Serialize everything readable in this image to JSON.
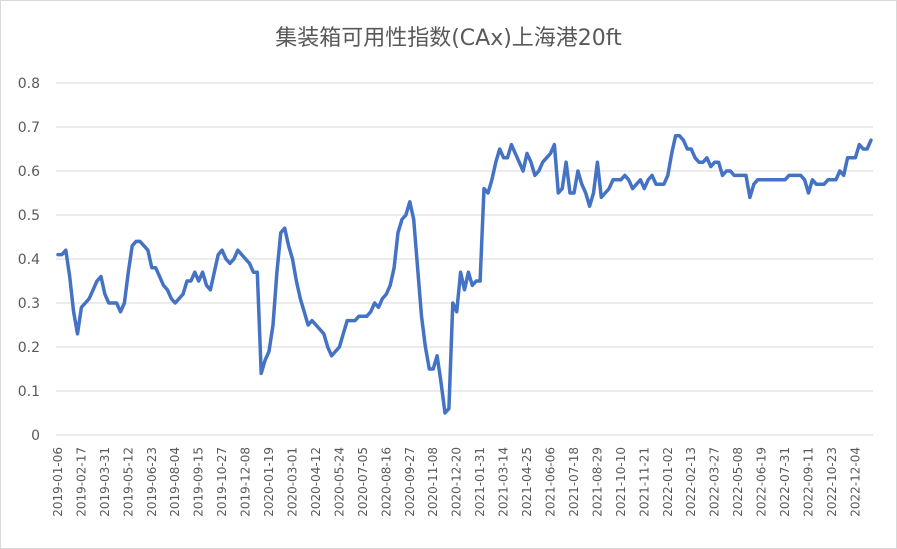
{
  "chart_data": {
    "type": "line",
    "title": "集装箱可用性指数(CAx)上海港20ft",
    "xlabel": "",
    "ylabel": "",
    "ylim": [
      0,
      0.8
    ],
    "yticks": [
      "0",
      "0.1",
      "0.2",
      "0.3",
      "0.4",
      "0.5",
      "0.6",
      "0.7",
      "0.8"
    ],
    "grid": true,
    "legend": "none",
    "line_color": "#4472C4",
    "x_tick_labels": [
      "2019-01-06",
      "2019-02-17",
      "2019-03-31",
      "2019-05-12",
      "2019-06-23",
      "2019-08-04",
      "2019-09-15",
      "2019-10-27",
      "2019-12-08",
      "2020-01-19",
      "2020-03-01",
      "2020-04-12",
      "2020-05-24",
      "2020-07-05",
      "2020-08-16",
      "2020-09-27",
      "2020-11-08",
      "2020-12-20",
      "2021-01-31",
      "2021-03-14",
      "2021-04-25",
      "2021-06-06",
      "2021-07-18",
      "2021-08-29",
      "2021-10-10",
      "2021-11-21",
      "2022-01-02",
      "2022-02-13",
      "2022-03-27",
      "2022-05-08",
      "2022-06-19",
      "2022-07-31",
      "2022-09-11",
      "2022-10-23",
      "2022-12-04"
    ],
    "series": [
      {
        "values": [
          0.41,
          0.41,
          0.42,
          0.36,
          0.28,
          0.23,
          0.29,
          0.3,
          0.31,
          0.33,
          0.35,
          0.36,
          0.32,
          0.3,
          0.3,
          0.3,
          0.28,
          0.3,
          0.37,
          0.43,
          0.44,
          0.44,
          0.43,
          0.42,
          0.38,
          0.38,
          0.36,
          0.34,
          0.33,
          0.31,
          0.3,
          0.31,
          0.32,
          0.35,
          0.35,
          0.37,
          0.35,
          0.37,
          0.34,
          0.33,
          0.37,
          0.41,
          0.42,
          0.4,
          0.39,
          0.4,
          0.42,
          0.41,
          0.4,
          0.39,
          0.37,
          0.37,
          0.14,
          0.17,
          0.19,
          0.25,
          0.37,
          0.46,
          0.47,
          0.43,
          0.4,
          0.35,
          0.31,
          0.28,
          0.25,
          0.26,
          0.25,
          0.24,
          0.23,
          0.2,
          0.18,
          0.19,
          0.2,
          0.23,
          0.26,
          0.26,
          0.26,
          0.27,
          0.27,
          0.27,
          0.28,
          0.3,
          0.29,
          0.31,
          0.32,
          0.34,
          0.38,
          0.46,
          0.49,
          0.5,
          0.53,
          0.49,
          0.38,
          0.27,
          0.2,
          0.15,
          0.15,
          0.18,
          0.12,
          0.05,
          0.06,
          0.3,
          0.28,
          0.37,
          0.33,
          0.37,
          0.34,
          0.35,
          0.35,
          0.56,
          0.55,
          0.58,
          0.62,
          0.65,
          0.63,
          0.63,
          0.66,
          0.64,
          0.62,
          0.6,
          0.64,
          0.62,
          0.59,
          0.6,
          0.62,
          0.63,
          0.64,
          0.66,
          0.55,
          0.56,
          0.62,
          0.55,
          0.55,
          0.6,
          0.57,
          0.55,
          0.52,
          0.55,
          0.62,
          0.54,
          0.55,
          0.56,
          0.58,
          0.58,
          0.58,
          0.59,
          0.58,
          0.56,
          0.57,
          0.58,
          0.56,
          0.58,
          0.59,
          0.57,
          0.57,
          0.57,
          0.59,
          0.64,
          0.68,
          0.68,
          0.67,
          0.65,
          0.65,
          0.63,
          0.62,
          0.62,
          0.63,
          0.61,
          0.62,
          0.62,
          0.59,
          0.6,
          0.6,
          0.59,
          0.59,
          0.59,
          0.59,
          0.54,
          0.57,
          0.58,
          0.58,
          0.58,
          0.58,
          0.58,
          0.58,
          0.58,
          0.58,
          0.59,
          0.59,
          0.59,
          0.59,
          0.58,
          0.55,
          0.58,
          0.57,
          0.57,
          0.57,
          0.58,
          0.58,
          0.58,
          0.6,
          0.59,
          0.63,
          0.63,
          0.63,
          0.66,
          0.65,
          0.65,
          0.67
        ]
      }
    ]
  }
}
